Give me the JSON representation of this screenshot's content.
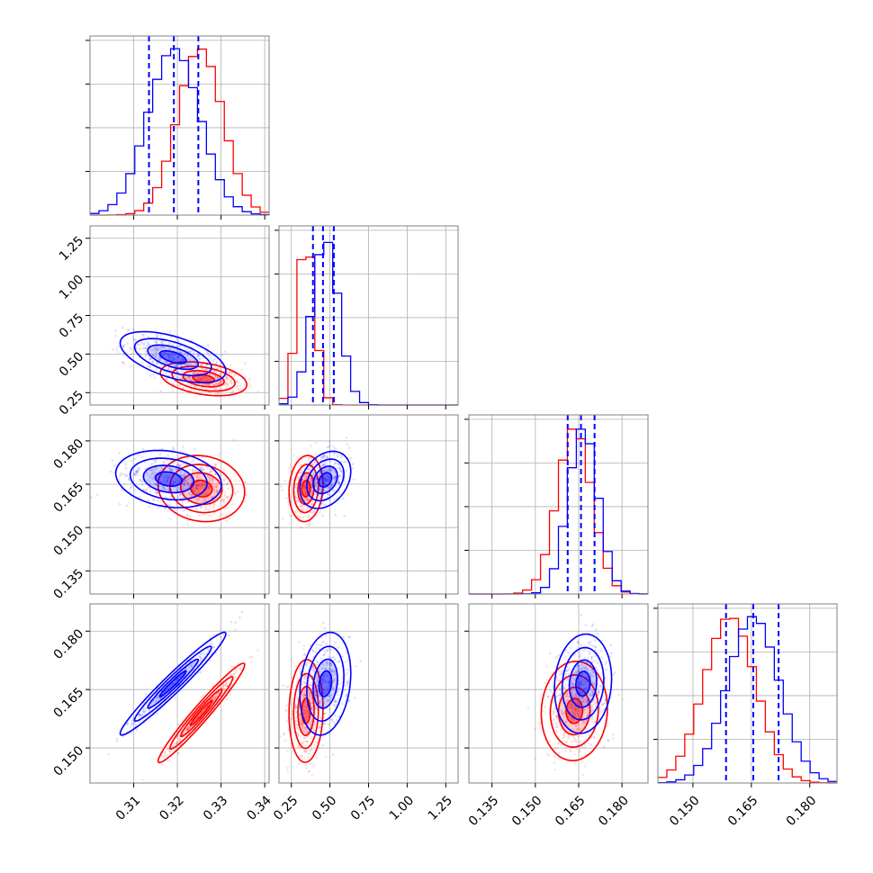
{
  "chart_data": {
    "type": "scatter",
    "title": "",
    "grid": true,
    "legend": "none",
    "colors": {
      "primary": "#0000ff",
      "secondary": "#ff0000",
      "grid": "#b0b0b0",
      "frame": "#808080"
    },
    "parameters": [
      {
        "range": [
          0.3,
          0.341
        ],
        "ticks": [
          0.31,
          0.32,
          0.33,
          0.34
        ],
        "tick_labels": [
          "0.31",
          "0.32",
          "0.33",
          "0.34"
        ],
        "blue": {
          "mean": 0.3192,
          "sd": 0.0052
        },
        "red": {
          "mean": 0.3252,
          "sd": 0.0045
        },
        "quantiles": [
          0.3135,
          0.3192,
          0.3248
        ]
      },
      {
        "range": [
          0.17,
          1.33
        ],
        "ticks": [
          0.25,
          0.5,
          0.75,
          1.0,
          1.25
        ],
        "tick_labels": [
          "0.25",
          "0.50",
          "0.75",
          "1.00",
          "1.25"
        ],
        "blue": {
          "mean": 0.47,
          "sd": 0.075
        },
        "red": {
          "mean": 0.345,
          "sd": 0.05
        },
        "quantiles": [
          0.39,
          0.455,
          0.525
        ]
      },
      {
        "range": [
          0.127,
          0.189
        ],
        "ticks": [
          0.135,
          0.15,
          0.165,
          0.18
        ],
        "tick_labels": [
          "0.135",
          "0.150",
          "0.165",
          "0.180"
        ],
        "blue": {
          "mean": 0.1665,
          "sd": 0.0045
        },
        "red": {
          "mean": 0.1635,
          "sd": 0.0052
        },
        "quantiles": [
          0.1612,
          0.1658,
          0.1705
        ]
      },
      {
        "range": [
          0.141,
          0.187
        ],
        "ticks": [
          0.15,
          0.165,
          0.18
        ],
        "tick_labels": [
          "0.150",
          "0.165",
          "0.180"
        ],
        "blue": {
          "mean": 0.1655,
          "sd": 0.0058
        },
        "red": {
          "mean": 0.1595,
          "sd": 0.0058
        },
        "quantiles": [
          0.1585,
          0.1655,
          0.172
        ]
      }
    ],
    "pairs": [
      {
        "x": 0,
        "y": 1,
        "blue": {
          "cx": 0.319,
          "cy": 0.48,
          "sx": 0.0055,
          "sy": 0.075,
          "rho": -0.55
        },
        "red": {
          "cx": 0.326,
          "cy": 0.34,
          "sx": 0.0045,
          "sy": 0.05,
          "rho": -0.35
        }
      },
      {
        "x": 0,
        "y": 2,
        "blue": {
          "cx": 0.318,
          "cy": 0.1668,
          "sx": 0.0055,
          "sy": 0.0045,
          "rho": -0.2
        },
        "red": {
          "cx": 0.3255,
          "cy": 0.1635,
          "sx": 0.0045,
          "sy": 0.0052,
          "rho": -0.1
        }
      },
      {
        "x": 0,
        "y": 3,
        "blue": {
          "cx": 0.319,
          "cy": 0.1665,
          "sx": 0.0055,
          "sy": 0.006,
          "rho": 0.97
        },
        "red": {
          "cx": 0.3255,
          "cy": 0.159,
          "sx": 0.0045,
          "sy": 0.0058,
          "rho": 0.97
        }
      },
      {
        "x": 1,
        "y": 2,
        "blue": {
          "cx": 0.47,
          "cy": 0.1665,
          "sx": 0.075,
          "sy": 0.0045,
          "rho": 0.3
        },
        "red": {
          "cx": 0.345,
          "cy": 0.1635,
          "sx": 0.05,
          "sy": 0.0052,
          "rho": 0.1
        }
      },
      {
        "x": 1,
        "y": 3,
        "blue": {
          "cx": 0.47,
          "cy": 0.1665,
          "sx": 0.075,
          "sy": 0.006,
          "rho": 0.2
        },
        "red": {
          "cx": 0.345,
          "cy": 0.1595,
          "sx": 0.05,
          "sy": 0.006,
          "rho": 0.05
        }
      },
      {
        "x": 2,
        "y": 3,
        "blue": {
          "cx": 0.1665,
          "cy": 0.1665,
          "sx": 0.0045,
          "sy": 0.0058,
          "rho": 0.1
        },
        "red": {
          "cx": 0.1635,
          "cy": 0.1595,
          "sx": 0.0052,
          "sy": 0.0058,
          "rho": 0.05
        }
      }
    ]
  }
}
